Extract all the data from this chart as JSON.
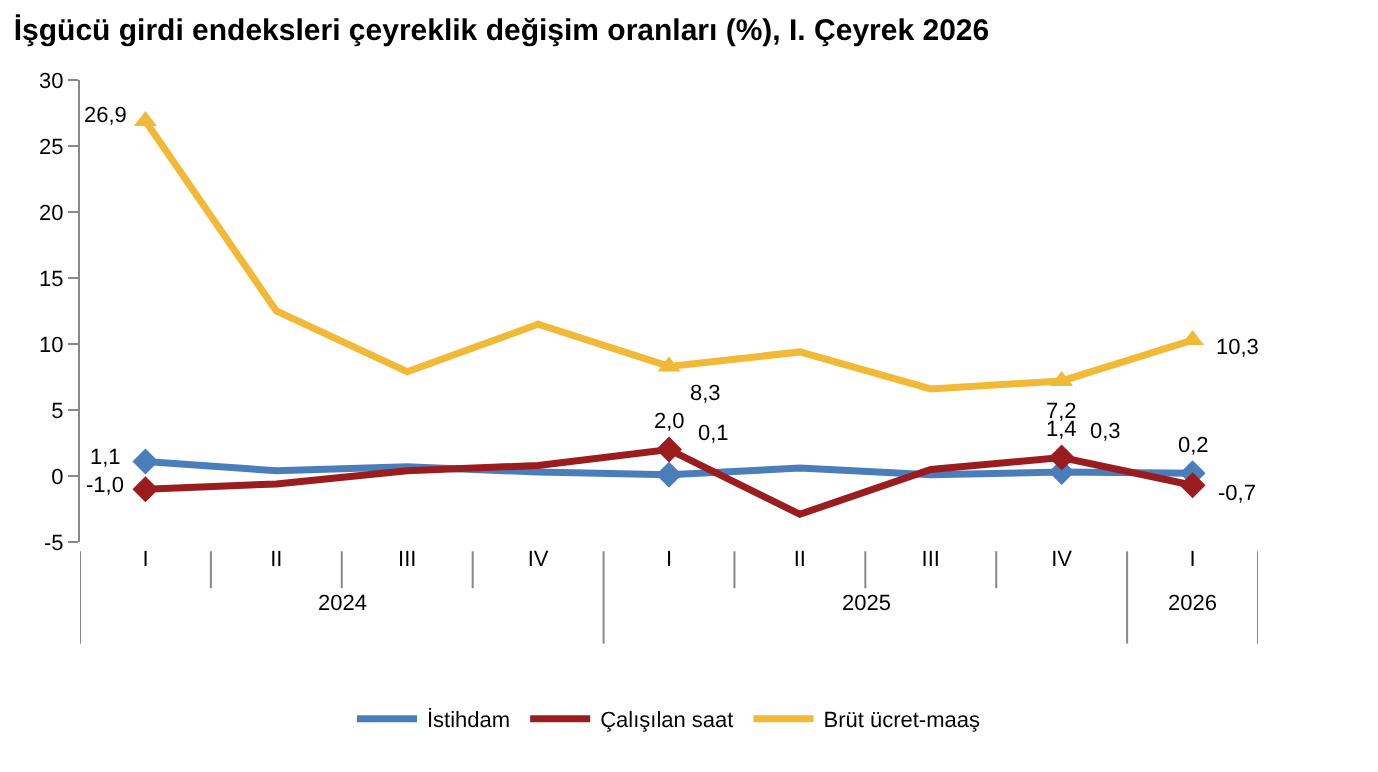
{
  "chart_data": {
    "type": "line",
    "title": "İşgücü girdi endeksleri çeyreklik değişim oranları (%), I. Çeyrek 2026",
    "categories": [
      "I",
      "II",
      "III",
      "IV",
      "I",
      "II",
      "III",
      "IV",
      "I"
    ],
    "annotations": [
      "2024",
      "2025",
      "2026"
    ],
    "series": [
      {
        "name": "İstihdam",
        "color": "#4a7ebb",
        "values": [
          1.1,
          0.4,
          0.7,
          0.3,
          0.1,
          0.6,
          0.1,
          0.3,
          0.2
        ],
        "value_labels": [
          "1,1",
          null,
          null,
          null,
          "0,1",
          null,
          null,
          "0,3",
          "0,2"
        ]
      },
      {
        "name": "Çalışılan saat",
        "color": "#9b1c1f",
        "values": [
          -1.0,
          -0.6,
          0.4,
          0.8,
          2.0,
          -2.9,
          0.5,
          1.4,
          -0.7
        ],
        "value_labels": [
          "-1,0",
          null,
          null,
          null,
          "2,0",
          null,
          null,
          "1,4",
          "-0,7"
        ]
      },
      {
        "name": "Brüt ücret-maaş",
        "color": "#f2b937",
        "values": [
          26.9,
          12.5,
          7.9,
          11.5,
          8.3,
          9.4,
          6.6,
          7.2,
          10.3
        ],
        "value_labels": [
          "26,9",
          null,
          null,
          null,
          "8,3",
          null,
          null,
          "7,2",
          "10,3"
        ]
      }
    ],
    "ylim": [
      -5,
      30
    ],
    "yticks": [
      -5,
      0,
      5,
      10,
      15,
      20,
      25,
      30
    ],
    "legend": "bottom"
  }
}
